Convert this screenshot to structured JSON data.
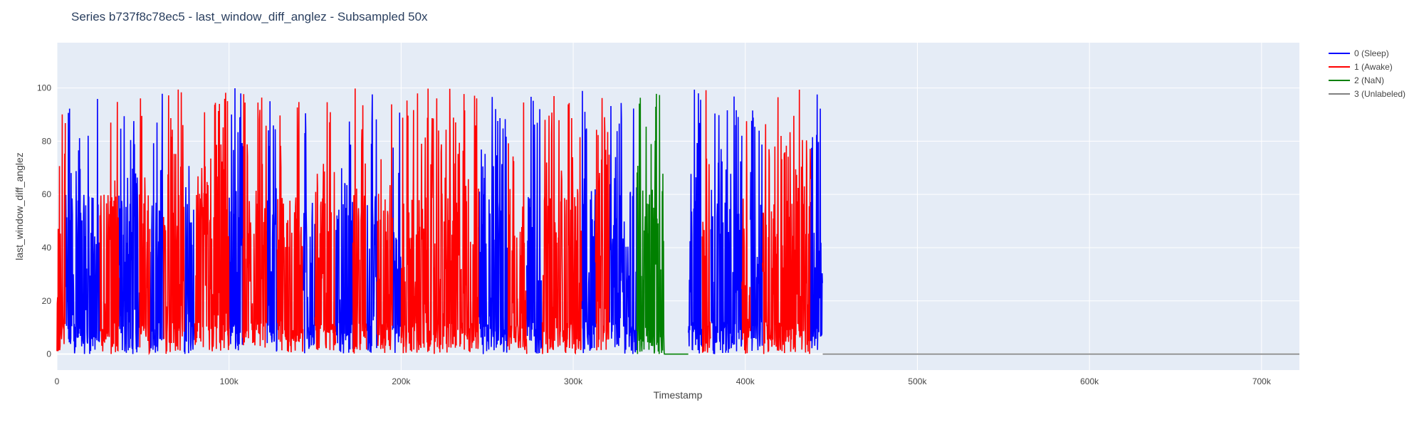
{
  "chart_data": {
    "type": "line",
    "title": "Series b737f8c78ec5 - last_window_diff_anglez - Subsampled 50x",
    "xlabel": "Timestamp",
    "ylabel": "last_window_diff_anglez",
    "xlim": [
      0,
      722000
    ],
    "ylim": [
      -6,
      117
    ],
    "x_ticks": [
      0,
      100000,
      200000,
      300000,
      400000,
      500000,
      600000,
      700000
    ],
    "x_tick_labels": [
      "0",
      "100k",
      "200k",
      "300k",
      "400k",
      "500k",
      "600k",
      "700k"
    ],
    "y_ticks": [
      0,
      20,
      40,
      60,
      80,
      100
    ],
    "y_tick_labels": [
      "0",
      "20",
      "40",
      "60",
      "80",
      "100"
    ],
    "grid": true,
    "background": "#e5ecf6",
    "legend_position": "top-right outside",
    "series": [
      {
        "name": "0 (Sleep)",
        "color": "#0000ff",
        "segments": [
          [
            5000,
            25000
          ],
          [
            36000,
            48000
          ],
          [
            54000,
            62000
          ],
          [
            74000,
            80000
          ],
          [
            100000,
            108000
          ],
          [
            122000,
            128000
          ],
          [
            143000,
            150000
          ],
          [
            162000,
            172000
          ],
          [
            180000,
            186000
          ],
          [
            195000,
            200000
          ],
          [
            245000,
            262000
          ],
          [
            273000,
            282000
          ],
          [
            305000,
            313000
          ],
          [
            321000,
            337000
          ],
          [
            367000,
            375000
          ],
          [
            380000,
            398000
          ],
          [
            403000,
            410000
          ],
          [
            438000,
            445000
          ]
        ]
      },
      {
        "name": "1 (Awake)",
        "color": "#ff0000",
        "segments": [
          [
            0,
            5000
          ],
          [
            25000,
            36000
          ],
          [
            48000,
            54000
          ],
          [
            62000,
            74000
          ],
          [
            80000,
            100000
          ],
          [
            108000,
            122000
          ],
          [
            128000,
            143000
          ],
          [
            150000,
            162000
          ],
          [
            172000,
            180000
          ],
          [
            186000,
            195000
          ],
          [
            200000,
            245000
          ],
          [
            262000,
            273000
          ],
          [
            282000,
            305000
          ],
          [
            313000,
            321000
          ],
          [
            375000,
            380000
          ],
          [
            398000,
            403000
          ],
          [
            410000,
            438000
          ]
        ]
      },
      {
        "name": "2 (NaN)",
        "color": "#008000",
        "segments": [
          [
            337000,
            367000
          ]
        ]
      },
      {
        "name": "3 (Unlabeled)",
        "color": "#808080",
        "segments": [
          [
            445000,
            722000
          ]
        ]
      }
    ]
  }
}
